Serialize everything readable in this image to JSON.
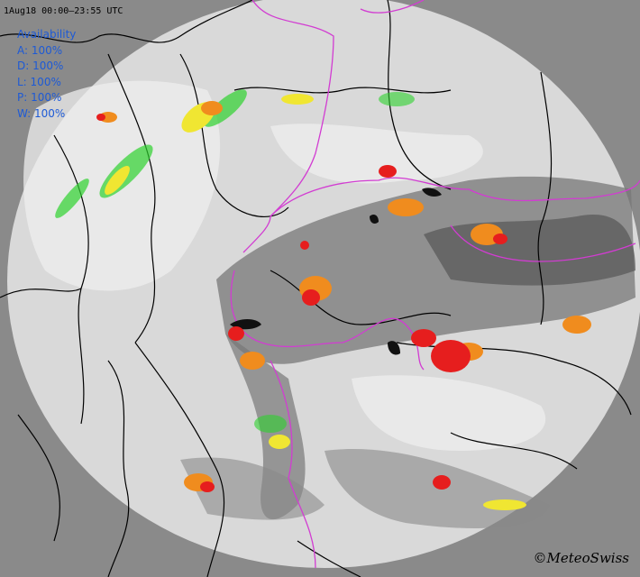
{
  "map": {
    "timestamp": "1Aug18 00:00–23:55 UTC",
    "availability": {
      "title": "Availability",
      "items": [
        {
          "label": "A: 100%"
        },
        {
          "label": "D: 100%"
        },
        {
          "label": "L: 100%"
        },
        {
          "label": "P: 100%"
        },
        {
          "label": "W: 100%"
        }
      ]
    },
    "copyright": "©MeteoSwiss",
    "colors": {
      "outside": "#8a8a8a",
      "coverage": "#d9d9d9",
      "lowland": "#e6e6e6",
      "mountain": "#6e6e6e",
      "borders": "#000000",
      "cantons": "#d23cd2",
      "legend_text": "#1d5ad6",
      "precip_low": "#2dd22d",
      "precip_mid": "#f0e632",
      "precip_high": "#f08c1e",
      "precip_max": "#e61e1e"
    }
  }
}
